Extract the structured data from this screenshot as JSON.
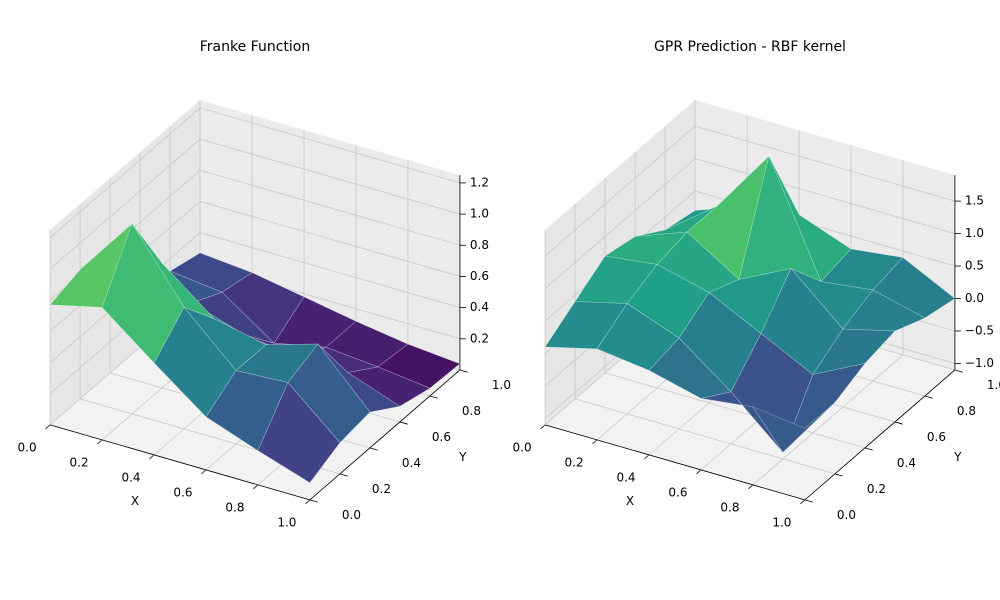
{
  "chart_data": [
    {
      "type": "surface",
      "title": "Franke Function",
      "xlabel": "X",
      "ylabel": "Y",
      "colormap": "viridis",
      "grid": true,
      "x": [
        0,
        0.2,
        0.4,
        0.6,
        0.8,
        1
      ],
      "y": [
        0,
        0.2,
        0.4,
        0.6,
        0.8,
        1
      ],
      "z": [
        [
          0.77,
          0.85,
          0.59,
          0.34,
          0.22,
          0.11
        ],
        [
          0.83,
          1.22,
          0.78,
          0.47,
          0.49,
          0.2
        ],
        [
          0.61,
          0.8,
          0.54,
          0.47,
          0.57,
          0.23
        ],
        [
          0.4,
          0.38,
          0.27,
          0.23,
          0.22,
          0.1
        ],
        [
          0.32,
          0.28,
          0.05,
          0.12,
          0.09,
          0.05
        ],
        [
          0.27,
          0.24,
          0.18,
          0.12,
          0.07,
          0.04
        ]
      ],
      "xlim": [
        0,
        1
      ],
      "ylim": [
        0,
        1
      ],
      "zlim": [
        0,
        1.25
      ],
      "xticks": [
        {
          "value": 0,
          "label": "0.0"
        },
        0.2,
        0.4,
        0.6,
        0.8,
        {
          "value": 1,
          "label": "1.0"
        }
      ],
      "yticks": [
        {
          "value": 0,
          "label": "0.0"
        },
        0.2,
        0.4,
        0.6,
        0.8,
        {
          "value": 1,
          "label": "1.0"
        }
      ],
      "zticks": [
        0.2,
        0.4,
        0.6,
        0.8,
        {
          "value": 1,
          "label": "1.0"
        },
        1.2
      ]
    },
    {
      "type": "surface",
      "title": "GPR Prediction - RBF kernel",
      "xlabel": "X",
      "ylabel": "Y",
      "colormap": "viridis",
      "grid": true,
      "x": [
        0,
        0.2,
        0.4,
        0.6,
        0.8,
        1
      ],
      "y": [
        0,
        0.2,
        0.4,
        0.6,
        0.8,
        1
      ],
      "z": [
        [
          0.1,
          0.3,
          0.2,
          0.0,
          0.1,
          0.0
        ],
        [
          0.4,
          0.6,
          0.3,
          -0.3,
          -1.0,
          0.0
        ],
        [
          0.7,
          0.8,
          0.6,
          0.2,
          -0.2,
          0.2
        ],
        [
          0.6,
          0.9,
          0.4,
          0.8,
          0.1,
          0.3
        ],
        [
          0.3,
          0.9,
          1.9,
          0.2,
          0.3,
          0.1
        ],
        [
          0.2,
          0.5,
          0.6,
          0.3,
          0.4,
          0.0
        ]
      ],
      "xlim": [
        0,
        1
      ],
      "ylim": [
        0,
        1
      ],
      "zlim": [
        -1.1,
        1.9
      ],
      "xticks": [
        {
          "value": 0,
          "label": "0.0"
        },
        0.2,
        0.4,
        0.6,
        0.8,
        {
          "value": 1,
          "label": "1.0"
        }
      ],
      "yticks": [
        {
          "value": 0,
          "label": "0.0"
        },
        0.2,
        0.4,
        0.6,
        0.8,
        {
          "value": 1,
          "label": "1.0"
        }
      ],
      "zticks": [
        {
          "value": -1,
          "label": "−1.0"
        },
        {
          "value": -0.5,
          "label": "−0.5"
        },
        {
          "value": 0,
          "label": "0.0"
        },
        0.5,
        {
          "value": 1,
          "label": "1.0"
        },
        1.5
      ]
    }
  ]
}
